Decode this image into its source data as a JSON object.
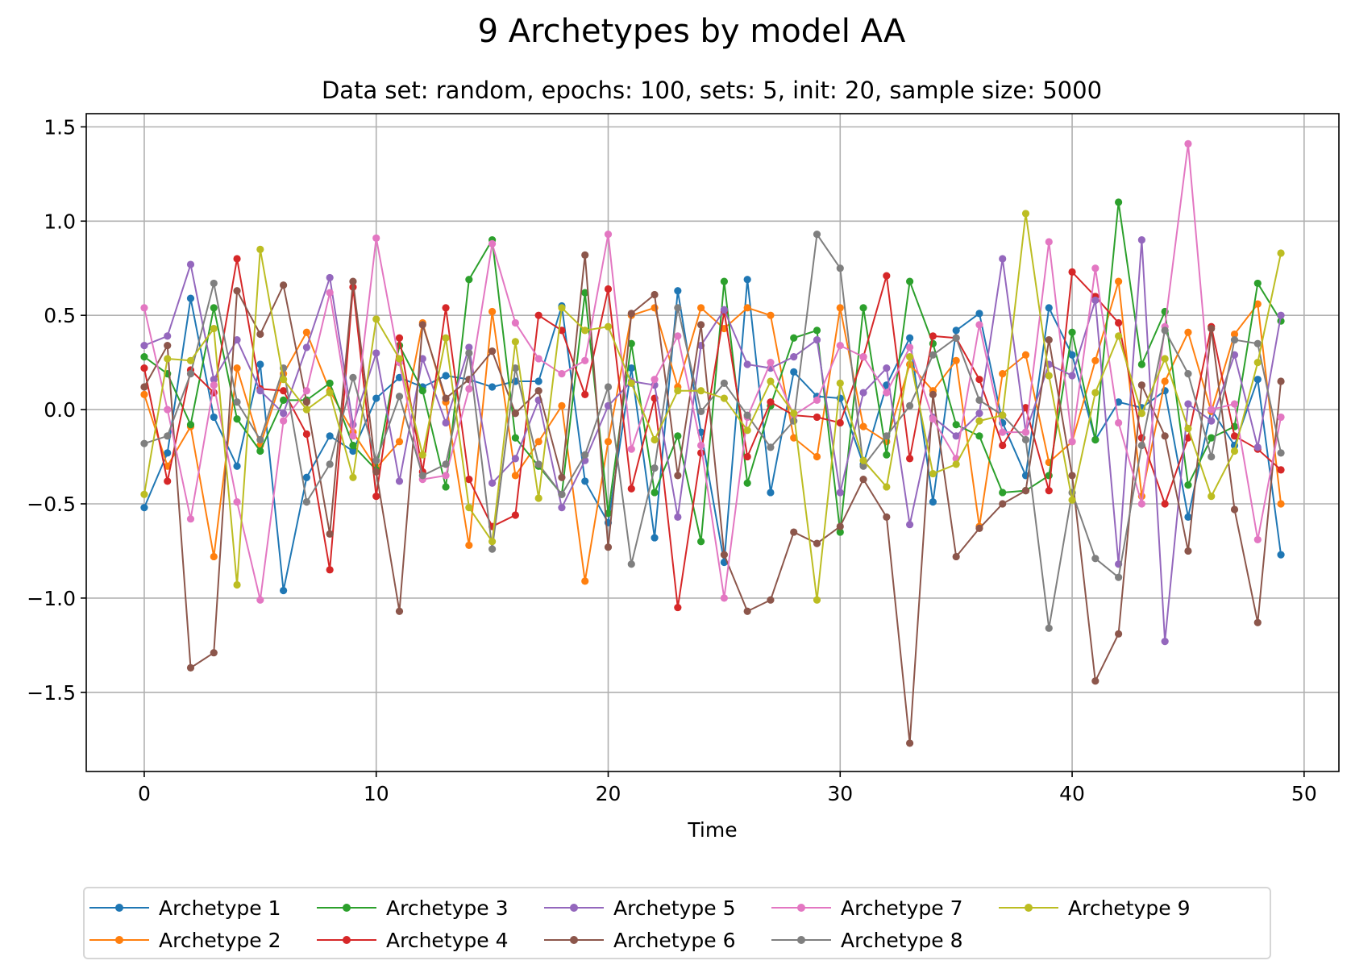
{
  "chart_data": {
    "type": "line",
    "title": "9 Archetypes by model AA",
    "subtitle": "Data set: random, epochs: 100, sets: 5, init: 20, sample size: 5000",
    "xlabel": "Time",
    "ylabel": "",
    "xlim": [
      -2.5,
      51.5
    ],
    "ylim": [
      -1.92,
      1.57
    ],
    "xticks": [
      0,
      10,
      20,
      30,
      40,
      50
    ],
    "xtick_labels": [
      "0",
      "10",
      "20",
      "30",
      "40",
      "50"
    ],
    "yticks": [
      1.5,
      1.0,
      0.5,
      0.0,
      -0.5,
      -1.0,
      -1.5
    ],
    "ytick_labels": [
      "1.5",
      "1.0",
      "0.5",
      "0.0",
      "−0.5",
      "−1.0",
      "−1.5"
    ],
    "grid": true,
    "legend_position": "bottom-center",
    "legend_columns": 5,
    "x": [
      0,
      1,
      2,
      3,
      4,
      5,
      6,
      7,
      8,
      9,
      10,
      11,
      12,
      13,
      14,
      15,
      16,
      17,
      18,
      19,
      20,
      21,
      22,
      23,
      24,
      25,
      26,
      27,
      28,
      29,
      30,
      31,
      32,
      33,
      34,
      35,
      36,
      37,
      38,
      39,
      40,
      41,
      42,
      43,
      44,
      45,
      46,
      47,
      48,
      49
    ],
    "series": [
      {
        "name": "Archetype 1",
        "color": "#1f77b4",
        "values": [
          -0.52,
          -0.23,
          0.59,
          -0.04,
          -0.3,
          0.24,
          -0.96,
          -0.36,
          -0.14,
          -0.22,
          0.06,
          0.17,
          0.12,
          0.18,
          0.16,
          0.12,
          0.15,
          0.15,
          0.55,
          -0.38,
          -0.6,
          0.22,
          -0.68,
          0.63,
          -0.12,
          -0.81,
          0.69,
          -0.44,
          0.2,
          0.07,
          0.06,
          -0.29,
          0.13,
          0.38,
          -0.49,
          0.42,
          0.51,
          -0.07,
          -0.35,
          0.54,
          0.29,
          -0.16,
          0.04,
          0.01,
          0.1,
          -0.57,
          0.0,
          -0.19,
          0.16,
          -0.77
        ]
      },
      {
        "name": "Archetype 2",
        "color": "#ff7f0e",
        "values": [
          0.08,
          -0.3,
          -0.09,
          -0.78,
          0.22,
          -0.19,
          0.19,
          0.41,
          0.1,
          -0.12,
          -0.31,
          -0.17,
          0.46,
          0.04,
          -0.72,
          0.52,
          -0.35,
          -0.17,
          0.02,
          -0.91,
          -0.17,
          0.5,
          0.54,
          0.12,
          0.54,
          0.43,
          0.54,
          0.5,
          -0.15,
          -0.25,
          0.54,
          -0.09,
          -0.17,
          0.24,
          0.1,
          0.26,
          -0.62,
          0.19,
          0.29,
          -0.28,
          -0.17,
          0.26,
          0.68,
          -0.46,
          0.15,
          0.41,
          -0.01,
          0.4,
          0.56,
          -0.5
        ]
      },
      {
        "name": "Archetype 3",
        "color": "#2ca02c",
        "values": [
          0.28,
          0.19,
          -0.08,
          0.54,
          -0.05,
          -0.22,
          0.05,
          0.05,
          0.14,
          -0.19,
          -0.32,
          0.34,
          0.1,
          -0.41,
          0.69,
          0.9,
          -0.15,
          -0.3,
          -0.45,
          0.62,
          -0.55,
          0.35,
          -0.44,
          -0.14,
          -0.7,
          0.68,
          -0.39,
          0.02,
          0.38,
          0.42,
          -0.65,
          0.54,
          -0.24,
          0.68,
          0.35,
          -0.08,
          -0.14,
          -0.44,
          -0.43,
          -0.35,
          0.41,
          -0.16,
          1.1,
          0.24,
          0.52,
          -0.4,
          -0.15,
          -0.09,
          0.67,
          0.47
        ]
      },
      {
        "name": "Archetype 4",
        "color": "#d62728",
        "values": [
          0.22,
          -0.38,
          0.21,
          0.09,
          0.8,
          0.11,
          0.1,
          -0.13,
          -0.85,
          0.65,
          -0.46,
          0.38,
          -0.33,
          0.54,
          -0.37,
          -0.62,
          -0.56,
          0.5,
          0.42,
          0.08,
          0.64,
          -0.42,
          0.06,
          -1.05,
          -0.23,
          0.52,
          -0.25,
          0.04,
          -0.03,
          -0.04,
          -0.07,
          0.28,
          0.71,
          -0.26,
          0.39,
          0.38,
          0.16,
          -0.19,
          0.01,
          -0.43,
          0.73,
          0.6,
          0.46,
          -0.15,
          -0.5,
          -0.15,
          0.44,
          -0.14,
          -0.21,
          -0.32
        ]
      },
      {
        "name": "Archetype 5",
        "color": "#9467bd",
        "values": [
          0.34,
          0.39,
          0.77,
          0.16,
          0.37,
          0.1,
          -0.02,
          0.33,
          0.7,
          -0.08,
          0.3,
          -0.38,
          0.27,
          -0.07,
          0.33,
          -0.39,
          -0.26,
          0.05,
          -0.52,
          -0.27,
          0.02,
          0.15,
          0.13,
          -0.57,
          0.34,
          0.53,
          0.24,
          0.22,
          0.28,
          0.37,
          -0.44,
          0.09,
          0.22,
          -0.61,
          -0.04,
          -0.14,
          -0.02,
          0.8,
          -0.12,
          0.24,
          0.18,
          0.58,
          -0.82,
          0.9,
          -1.23,
          0.03,
          -0.06,
          0.29,
          -0.2,
          0.5
        ]
      },
      {
        "name": "Archetype 6",
        "color": "#8c564b",
        "values": [
          0.12,
          0.34,
          -1.37,
          -1.29,
          0.63,
          0.4,
          0.66,
          0.04,
          -0.66,
          0.68,
          -0.33,
          -1.07,
          0.45,
          0.06,
          0.16,
          0.31,
          -0.02,
          0.1,
          -0.36,
          0.82,
          -0.73,
          0.51,
          0.61,
          -0.35,
          0.45,
          -0.77,
          -1.07,
          -1.01,
          -0.65,
          -0.71,
          -0.62,
          -0.37,
          -0.57,
          -1.77,
          0.08,
          -0.78,
          -0.63,
          -0.5,
          -0.43,
          0.37,
          -0.35,
          -1.44,
          -1.19,
          0.13,
          -0.14,
          -0.75,
          0.43,
          -0.53,
          -1.13,
          0.15
        ]
      },
      {
        "name": "Archetype 7",
        "color": "#e377c2",
        "values": [
          0.54,
          0.0,
          -0.58,
          0.13,
          -0.49,
          -1.01,
          -0.06,
          0.1,
          0.62,
          -0.14,
          0.91,
          0.25,
          -0.37,
          -0.35,
          0.11,
          0.88,
          0.46,
          0.27,
          0.19,
          0.26,
          0.93,
          -0.21,
          0.16,
          0.39,
          -0.19,
          -1.0,
          -0.04,
          0.25,
          -0.03,
          0.05,
          0.34,
          0.28,
          0.09,
          0.33,
          -0.05,
          -0.26,
          0.45,
          -0.12,
          -0.12,
          0.89,
          -0.17,
          0.75,
          -0.07,
          -0.5,
          0.44,
          1.41,
          0.0,
          0.03,
          -0.69,
          -0.04
        ]
      },
      {
        "name": "Archetype 8",
        "color": "#7f7f7f",
        "values": [
          -0.18,
          -0.14,
          0.19,
          0.67,
          0.04,
          -0.16,
          0.22,
          -0.49,
          -0.29,
          0.17,
          -0.27,
          0.07,
          -0.35,
          -0.29,
          0.3,
          -0.74,
          0.22,
          -0.29,
          -0.45,
          -0.24,
          0.12,
          -0.82,
          -0.31,
          0.54,
          -0.01,
          0.14,
          -0.03,
          -0.2,
          -0.06,
          0.93,
          0.75,
          -0.3,
          -0.14,
          0.02,
          0.29,
          0.38,
          0.05,
          -0.03,
          -0.16,
          -1.16,
          -0.44,
          -0.79,
          -0.89,
          -0.19,
          0.42,
          0.19,
          -0.25,
          0.37,
          0.35,
          -0.23
        ]
      },
      {
        "name": "Archetype 9",
        "color": "#bcbd22",
        "values": [
          -0.45,
          0.27,
          0.26,
          0.43,
          -0.93,
          0.85,
          0.16,
          0.0,
          0.09,
          -0.36,
          0.48,
          0.27,
          -0.24,
          0.38,
          -0.52,
          -0.7,
          0.36,
          -0.47,
          0.54,
          0.42,
          0.44,
          0.14,
          -0.16,
          0.1,
          0.1,
          0.06,
          -0.11,
          0.15,
          -0.02,
          -1.01,
          0.14,
          -0.27,
          -0.41,
          0.28,
          -0.34,
          -0.29,
          -0.06,
          -0.03,
          1.04,
          0.18,
          -0.48,
          0.09,
          0.39,
          -0.02,
          0.27,
          -0.1,
          -0.46,
          -0.22,
          0.25,
          0.83
        ]
      }
    ]
  }
}
